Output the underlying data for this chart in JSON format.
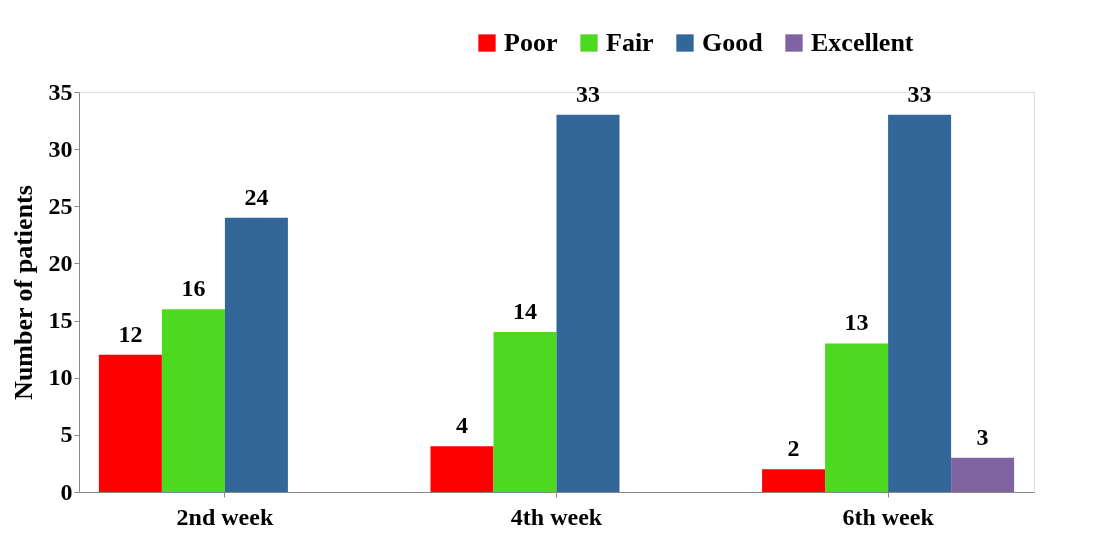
{
  "chart_data": {
    "type": "bar",
    "ylabel": "Number of patients",
    "categories": [
      "2nd week",
      "4th week",
      "6th week"
    ],
    "series": [
      {
        "name": "Poor",
        "color": "#ff0000",
        "values": [
          12,
          4,
          2
        ]
      },
      {
        "name": "Fair",
        "color": "#4cd91f",
        "values": [
          16,
          14,
          13
        ]
      },
      {
        "name": "Good",
        "color": "#336699",
        "values": [
          24,
          33,
          33
        ]
      },
      {
        "name": "Excellent",
        "color": "#8064a2",
        "values": [
          null,
          null,
          3
        ]
      }
    ],
    "ylim": [
      0,
      35
    ],
    "yticks": [
      0,
      5,
      10,
      15,
      20,
      25,
      30,
      35
    ],
    "grid": false,
    "legend": "top right",
    "data_labels": true
  }
}
